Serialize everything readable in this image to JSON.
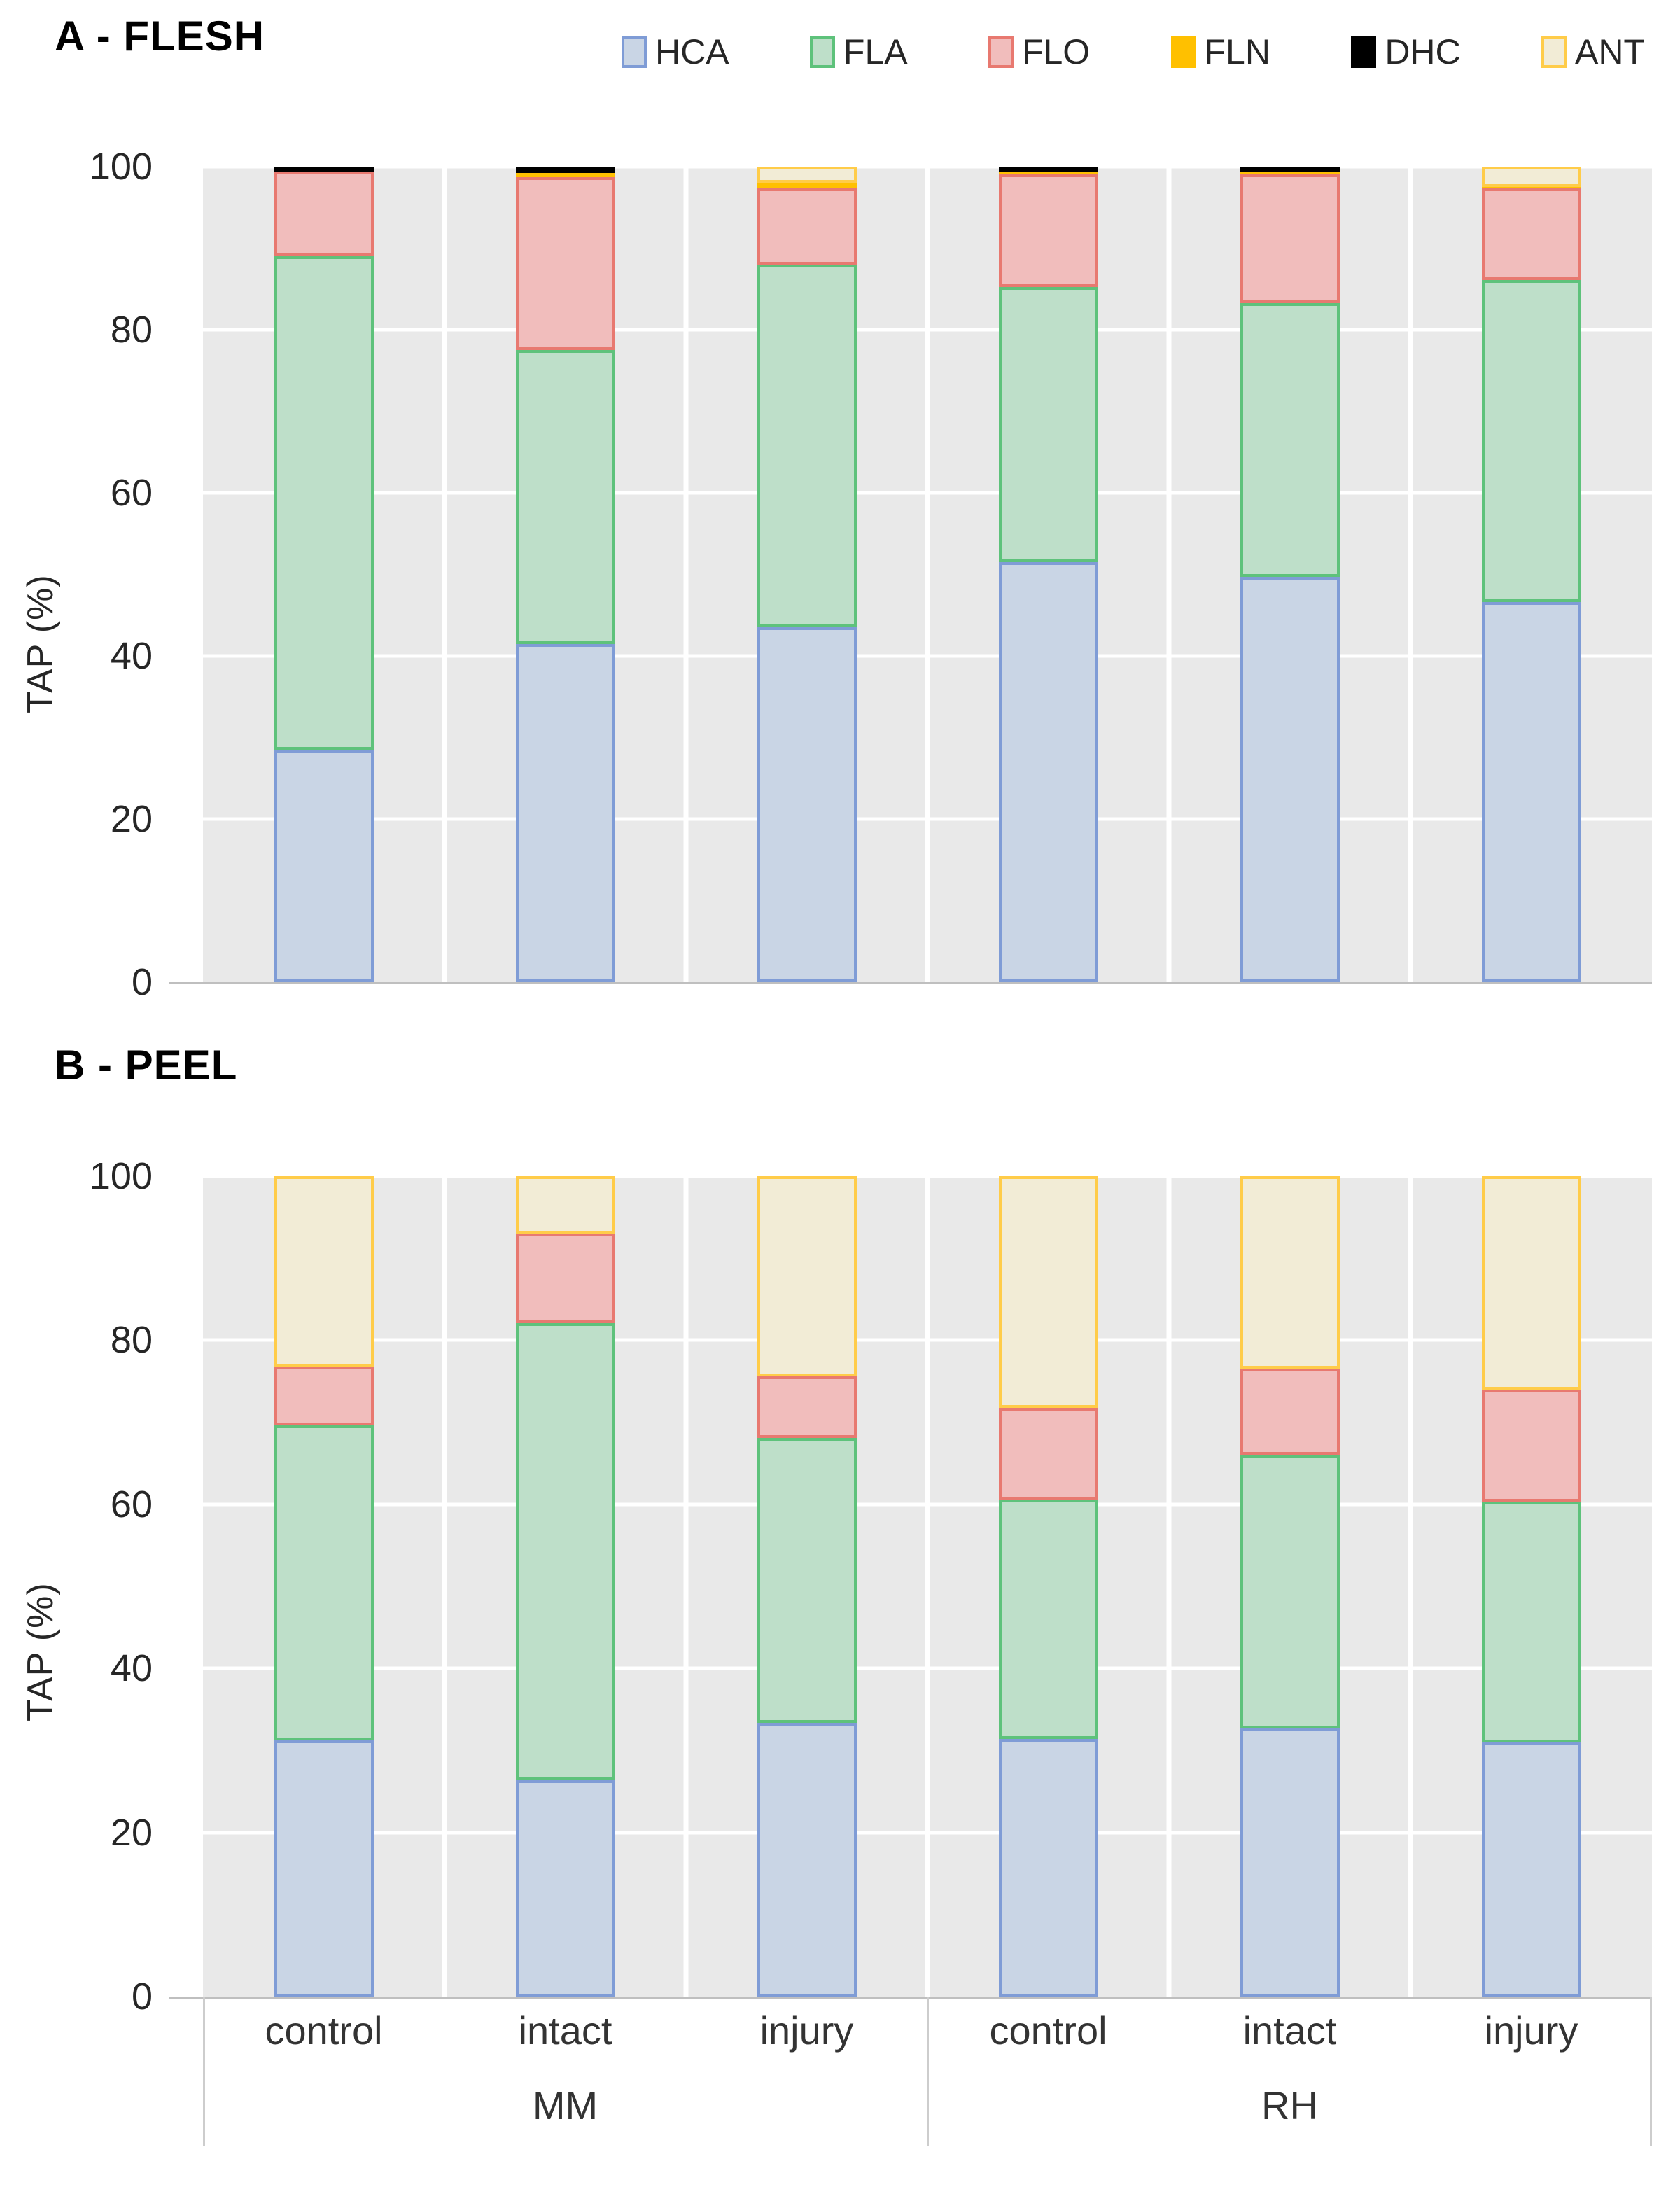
{
  "figure": {
    "y_axis_title": "TAP (%)"
  },
  "legend": {
    "position": "top-right",
    "items": [
      {
        "label": "HCA",
        "fill": "#C9D5E5",
        "border": "#7F9CD6"
      },
      {
        "label": "FLA",
        "fill": "#BEDFC9",
        "border": "#5EC27B"
      },
      {
        "label": "FLO",
        "fill": "#F1BDBC",
        "border": "#E87970"
      },
      {
        "label": "FLN",
        "fill": "#FFC000",
        "border": "#FFC000"
      },
      {
        "label": "DHC",
        "fill": "#000000",
        "border": "#000000"
      },
      {
        "label": "ANT",
        "fill": "#F2ECD6",
        "border": "#FFCC49"
      }
    ]
  },
  "colors": {
    "plot_background": "#E9E9E9",
    "gridline": "#FFFFFF",
    "axis_line": "#BFBFBF",
    "table_border": "#CDCDCD",
    "tick_text": "#262626",
    "title_text": "#000000"
  },
  "chart_data": [
    {
      "type": "bar",
      "stacked": true,
      "title": "A - FLESH",
      "ylabel": "TAP (%)",
      "ylim": [
        0,
        100
      ],
      "yticks": [
        0,
        20,
        40,
        60,
        80,
        100
      ],
      "grid": true,
      "legend_position": "top-right",
      "categories": [
        "control",
        "intact",
        "injury",
        "control",
        "intact",
        "injury"
      ],
      "group_labels": [
        "MM",
        "RH"
      ],
      "series": [
        {
          "name": "HCA",
          "values": [
            28.5,
            41.5,
            43.5,
            51.5,
            49.7,
            46.6
          ]
        },
        {
          "name": "FLA",
          "values": [
            60.5,
            36.0,
            44.5,
            33.7,
            33.6,
            39.5
          ]
        },
        {
          "name": "FLO",
          "values": [
            10.4,
            21.2,
            9.3,
            13.9,
            15.8,
            11.2
          ]
        },
        {
          "name": "FLN",
          "values": [
            0,
            0.5,
            0.7,
            0.3,
            0.3,
            0.2
          ]
        },
        {
          "name": "DHC",
          "values": [
            0.6,
            0.8,
            0,
            0.6,
            0.6,
            0
          ]
        },
        {
          "name": "ANT",
          "values": [
            0,
            0,
            2.0,
            0,
            0,
            2.5
          ]
        }
      ]
    },
    {
      "type": "bar",
      "stacked": true,
      "title": "B - PEEL",
      "ylabel": "TAP (%)",
      "ylim": [
        0,
        100
      ],
      "yticks": [
        0,
        20,
        40,
        60,
        80,
        100
      ],
      "grid": true,
      "legend_position": "none",
      "categories": [
        "control",
        "intact",
        "injury",
        "control",
        "intact",
        "injury"
      ],
      "group_labels": [
        "MM",
        "RH"
      ],
      "series": [
        {
          "name": "HCA",
          "values": [
            31.2,
            26.4,
            33.4,
            31.4,
            32.7,
            31.0
          ]
        },
        {
          "name": "FLA",
          "values": [
            38.4,
            55.7,
            34.7,
            29.2,
            33.3,
            29.3
          ]
        },
        {
          "name": "FLO",
          "values": [
            7.2,
            10.9,
            7.5,
            11.2,
            10.5,
            13.7
          ]
        },
        {
          "name": "FLN",
          "values": [
            0,
            0,
            0,
            0,
            0,
            0
          ]
        },
        {
          "name": "DHC",
          "values": [
            0,
            0,
            0,
            0,
            0,
            0
          ]
        },
        {
          "name": "ANT",
          "values": [
            23.2,
            7.0,
            24.4,
            28.2,
            23.5,
            26.0
          ]
        }
      ]
    }
  ]
}
